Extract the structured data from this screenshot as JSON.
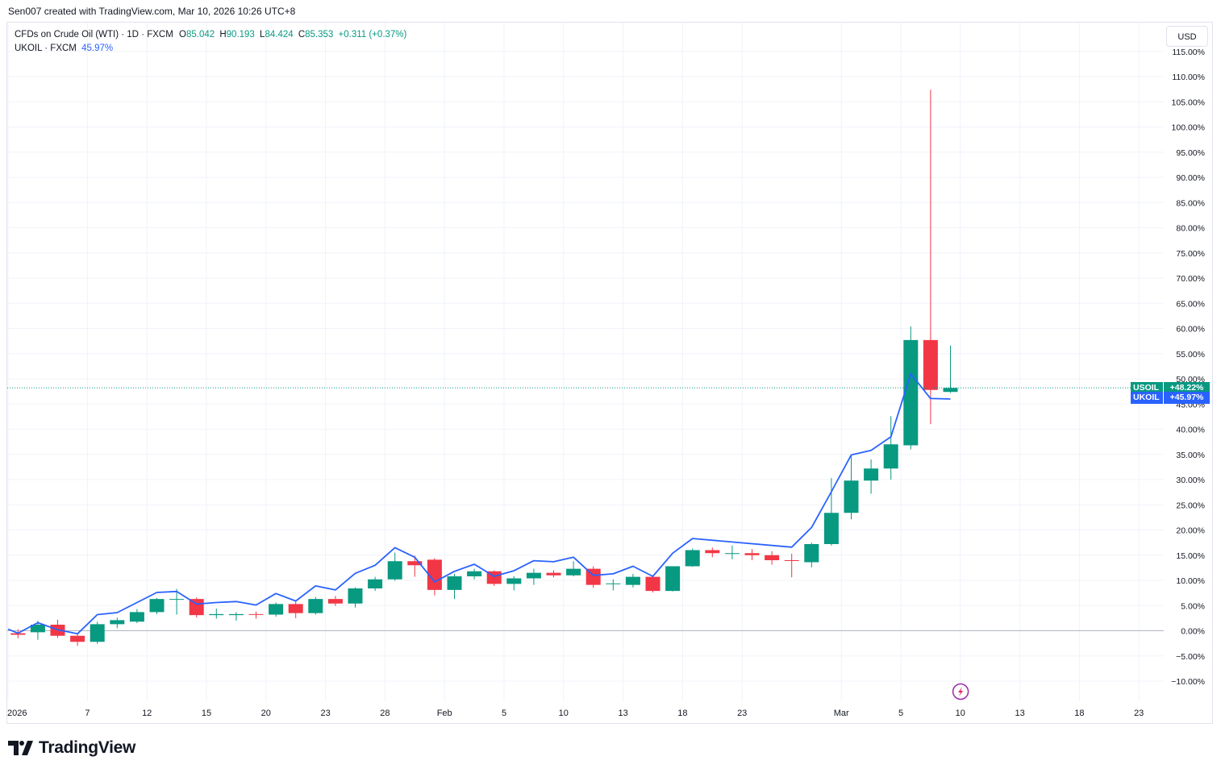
{
  "header": {
    "attribution": "Sen007 created with TradingView.com, Mar 10, 2026 10:26 UTC+8"
  },
  "legend": {
    "symbol_name": "CFDs on Crude Oil (WTI) · 1D · FXCM",
    "o_label": "O",
    "o_value": "85.042",
    "h_label": "H",
    "h_value": "90.193",
    "l_label": "L",
    "l_value": "84.424",
    "c_label": "C",
    "c_value": "85.353",
    "change": "+0.311 (+0.37%)",
    "compare_name": "UKOIL · FXCM",
    "compare_value": "45.97%"
  },
  "currency_button": "USD",
  "branding": {
    "logo_text": "TradingView"
  },
  "colors": {
    "up": "#089981",
    "down": "#f23645",
    "compare_line": "#2962ff",
    "compare_tag": "#2962ff",
    "grid": "#f0f3fa"
  },
  "chart_data": {
    "type": "candlestick",
    "title": "CFDs on Crude Oil (WTI) · 1D · FXCM",
    "y_unit": "percent change",
    "ylim": [
      -12,
      117
    ],
    "y_ticks": [
      115,
      110,
      105,
      100,
      95,
      90,
      85,
      80,
      75,
      70,
      65,
      60,
      55,
      50,
      45,
      40,
      35,
      30,
      25,
      20,
      15,
      10,
      5,
      0,
      -5,
      -10
    ],
    "y_tick_labels": [
      "115.00%",
      "110.00%",
      "105.00%",
      "100.00%",
      "95.00%",
      "90.00%",
      "85.00%",
      "80.00%",
      "75.00%",
      "70.00%",
      "65.00%",
      "60.00%",
      "55.00%",
      "50.00%",
      "45.00%",
      "40.00%",
      "35.00%",
      "30.00%",
      "25.00%",
      "20.00%",
      "15.00%",
      "10.00%",
      "5.00%",
      "0.00%",
      "−5.00%",
      "−10.00%"
    ],
    "x_ticks": [
      {
        "label": "2026",
        "index": 0
      },
      {
        "label": "7",
        "index": 4
      },
      {
        "label": "12",
        "index": 7
      },
      {
        "label": "15",
        "index": 10
      },
      {
        "label": "20",
        "index": 13
      },
      {
        "label": "23",
        "index": 16
      },
      {
        "label": "28",
        "index": 19
      },
      {
        "label": "Feb",
        "index": 22
      },
      {
        "label": "5",
        "index": 25
      },
      {
        "label": "10",
        "index": 28
      },
      {
        "label": "13",
        "index": 31
      },
      {
        "label": "18",
        "index": 34
      },
      {
        "label": "23",
        "index": 37
      },
      {
        "label": "Mar",
        "index": 42
      },
      {
        "label": "5",
        "index": 45
      },
      {
        "label": "10",
        "index": 48
      },
      {
        "label": "13",
        "index": 51
      },
      {
        "label": "18",
        "index": 54
      },
      {
        "label": "23",
        "index": 57
      }
    ],
    "series": [
      {
        "name": "USOIL",
        "kind": "candles",
        "candles": [
          {
            "i": 0.5,
            "o": -0.5,
            "h": 0.3,
            "l": -1.5,
            "c": -0.8
          },
          {
            "i": 1.5,
            "o": -0.3,
            "h": 2.0,
            "l": -1.8,
            "c": 1.2
          },
          {
            "i": 2.5,
            "o": 1.2,
            "h": 2.2,
            "l": -1.4,
            "c": -1.0
          },
          {
            "i": 3.5,
            "o": -1.0,
            "h": -0.6,
            "l": -3.0,
            "c": -2.2
          },
          {
            "i": 4.5,
            "o": -2.2,
            "h": 1.8,
            "l": -2.6,
            "c": 1.3
          },
          {
            "i": 5.5,
            "o": 1.3,
            "h": 2.6,
            "l": 0.5,
            "c": 2.1
          },
          {
            "i": 6.5,
            "o": 1.8,
            "h": 4.3,
            "l": 1.5,
            "c": 3.7
          },
          {
            "i": 7.5,
            "o": 3.7,
            "h": 6.5,
            "l": 3.3,
            "c": 6.3
          },
          {
            "i": 8.5,
            "o": 6.3,
            "h": 8.3,
            "l": 3.2,
            "c": 6.3
          },
          {
            "i": 9.5,
            "o": 6.3,
            "h": 6.6,
            "l": 2.6,
            "c": 3.1
          },
          {
            "i": 10.5,
            "o": 3.1,
            "h": 4.4,
            "l": 2.4,
            "c": 3.3
          },
          {
            "i": 11.5,
            "o": 3.1,
            "h": 3.7,
            "l": 2.0,
            "c": 3.3
          },
          {
            "i": 12.5,
            "o": 3.3,
            "h": 3.8,
            "l": 2.4,
            "c": 3.2
          },
          {
            "i": 13.5,
            "o": 3.2,
            "h": 5.6,
            "l": 2.8,
            "c": 5.3
          },
          {
            "i": 14.5,
            "o": 5.3,
            "h": 5.8,
            "l": 2.5,
            "c": 3.5
          },
          {
            "i": 15.5,
            "o": 3.5,
            "h": 6.7,
            "l": 3.2,
            "c": 6.3
          },
          {
            "i": 16.5,
            "o": 6.3,
            "h": 6.9,
            "l": 4.9,
            "c": 5.4
          },
          {
            "i": 17.5,
            "o": 5.4,
            "h": 8.6,
            "l": 4.6,
            "c": 8.4
          },
          {
            "i": 18.5,
            "o": 8.4,
            "h": 10.7,
            "l": 7.9,
            "c": 10.2
          },
          {
            "i": 19.5,
            "o": 10.2,
            "h": 15.5,
            "l": 9.9,
            "c": 13.8
          },
          {
            "i": 20.5,
            "o": 13.8,
            "h": 14.9,
            "l": 10.7,
            "c": 13.0
          },
          {
            "i": 21.5,
            "o": 14.1,
            "h": 14.4,
            "l": 7.0,
            "c": 8.1
          },
          {
            "i": 22.5,
            "o": 8.1,
            "h": 11.3,
            "l": 6.3,
            "c": 10.8
          },
          {
            "i": 23.5,
            "o": 10.8,
            "h": 12.3,
            "l": 10.2,
            "c": 11.8
          },
          {
            "i": 24.5,
            "o": 11.8,
            "h": 12.0,
            "l": 8.9,
            "c": 9.3
          },
          {
            "i": 25.5,
            "o": 9.3,
            "h": 10.8,
            "l": 8.0,
            "c": 10.4
          },
          {
            "i": 26.5,
            "o": 10.4,
            "h": 12.3,
            "l": 9.1,
            "c": 11.5
          },
          {
            "i": 27.5,
            "o": 11.5,
            "h": 12.0,
            "l": 10.6,
            "c": 11.0
          },
          {
            "i": 28.5,
            "o": 11.0,
            "h": 13.8,
            "l": 10.8,
            "c": 12.3
          },
          {
            "i": 29.5,
            "o": 12.3,
            "h": 12.8,
            "l": 8.5,
            "c": 9.1
          },
          {
            "i": 30.5,
            "o": 9.4,
            "h": 10.2,
            "l": 8.0,
            "c": 9.4
          },
          {
            "i": 31.5,
            "o": 9.1,
            "h": 11.3,
            "l": 8.6,
            "c": 10.7
          },
          {
            "i": 32.5,
            "o": 10.7,
            "h": 10.9,
            "l": 7.6,
            "c": 7.9
          },
          {
            "i": 33.5,
            "o": 7.9,
            "h": 12.8,
            "l": 7.8,
            "c": 12.8
          },
          {
            "i": 34.5,
            "o": 12.8,
            "h": 16.3,
            "l": 12.7,
            "c": 16.0
          },
          {
            "i": 35.5,
            "o": 16.0,
            "h": 16.5,
            "l": 14.6,
            "c": 15.4
          },
          {
            "i": 36.5,
            "o": 15.4,
            "h": 16.9,
            "l": 14.2,
            "c": 15.4
          },
          {
            "i": 37.5,
            "o": 15.4,
            "h": 16.2,
            "l": 14.0,
            "c": 15.0
          },
          {
            "i": 38.5,
            "o": 15.0,
            "h": 15.8,
            "l": 13.1,
            "c": 14.0
          },
          {
            "i": 39.5,
            "o": 14.0,
            "h": 15.3,
            "l": 10.6,
            "c": 13.9
          },
          {
            "i": 40.5,
            "o": 13.6,
            "h": 17.5,
            "l": 12.6,
            "c": 17.2
          },
          {
            "i": 41.5,
            "o": 17.2,
            "h": 30.3,
            "l": 16.9,
            "c": 23.4
          },
          {
            "i": 42.5,
            "o": 23.4,
            "h": 34.9,
            "l": 22.1,
            "c": 29.8
          },
          {
            "i": 43.5,
            "o": 29.8,
            "h": 34.0,
            "l": 27.2,
            "c": 32.2
          },
          {
            "i": 44.5,
            "o": 32.2,
            "h": 42.6,
            "l": 30.0,
            "c": 37.0
          },
          {
            "i": 45.5,
            "o": 36.8,
            "h": 60.4,
            "l": 36.0,
            "c": 57.7
          },
          {
            "i": 46.5,
            "o": 57.7,
            "h": 107.4,
            "l": 41.0,
            "c": 47.8
          },
          {
            "i": 47.5,
            "o": 47.4,
            "h": 56.6,
            "l": 47.2,
            "c": 48.2
          }
        ]
      },
      {
        "name": "UKOIL",
        "kind": "line",
        "points": [
          [
            0,
            0.3
          ],
          [
            0.5,
            -0.5
          ],
          [
            1.5,
            1.6
          ],
          [
            2.5,
            0.2
          ],
          [
            3.5,
            -0.6
          ],
          [
            4.5,
            3.2
          ],
          [
            5.5,
            3.6
          ],
          [
            6.5,
            5.6
          ],
          [
            7.5,
            7.6
          ],
          [
            8.5,
            7.8
          ],
          [
            9.5,
            5.3
          ],
          [
            10.5,
            5.6
          ],
          [
            11.5,
            5.8
          ],
          [
            12.5,
            5.1
          ],
          [
            13.5,
            7.4
          ],
          [
            14.5,
            5.9
          ],
          [
            15.5,
            8.9
          ],
          [
            16.5,
            8.1
          ],
          [
            17.5,
            11.4
          ],
          [
            18.5,
            13.0
          ],
          [
            19.5,
            16.5
          ],
          [
            20.5,
            14.6
          ],
          [
            21.5,
            9.7
          ],
          [
            22.5,
            11.8
          ],
          [
            23.5,
            13.2
          ],
          [
            24.5,
            10.8
          ],
          [
            25.5,
            11.9
          ],
          [
            26.5,
            13.9
          ],
          [
            27.5,
            13.7
          ],
          [
            28.5,
            14.6
          ],
          [
            29.5,
            11.0
          ],
          [
            30.5,
            11.3
          ],
          [
            31.5,
            12.8
          ],
          [
            32.5,
            10.8
          ],
          [
            33.5,
            15.4
          ],
          [
            34.5,
            18.3
          ],
          [
            39.5,
            16.6
          ],
          [
            40.5,
            20.5
          ],
          [
            41.5,
            27.6
          ],
          [
            42.5,
            34.9
          ],
          [
            43.5,
            35.8
          ],
          [
            44.5,
            38.5
          ],
          [
            45.5,
            51.0
          ],
          [
            46.5,
            46.1
          ],
          [
            47.5,
            46.0
          ]
        ]
      }
    ],
    "last_price_tags": [
      {
        "name": "USOIL",
        "value": "+48.22%",
        "level": 48.22
      },
      {
        "name": "UKOIL",
        "value": "+45.97%",
        "level": 45.97
      }
    ],
    "annotations": [
      {
        "name": "lightning-icon",
        "index": 48.5,
        "level": -12
      }
    ]
  }
}
